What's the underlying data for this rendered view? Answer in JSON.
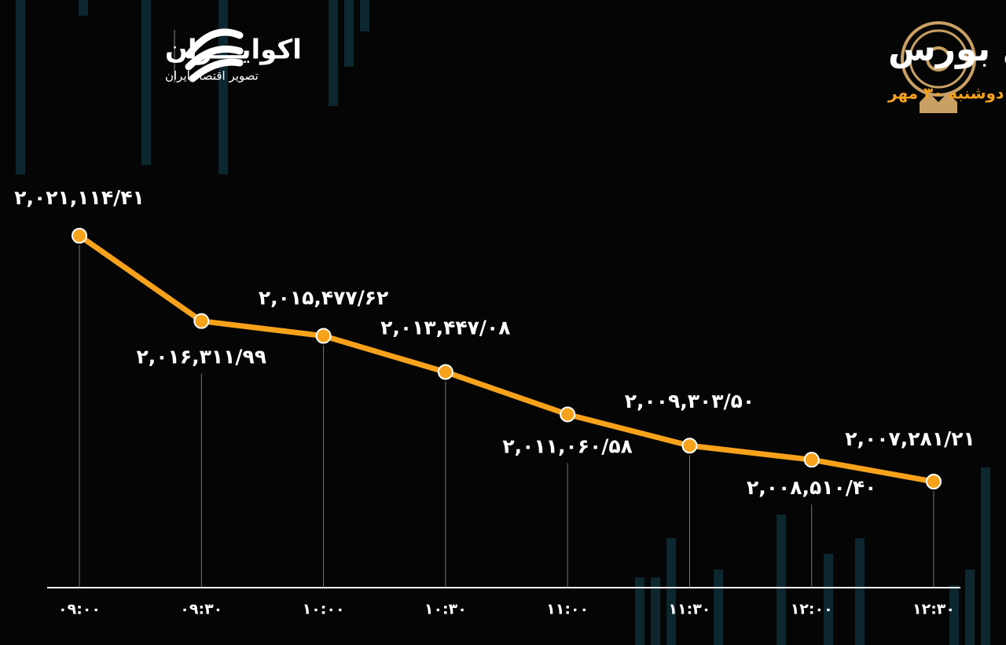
{
  "brand": {
    "name": "اکوایـــران",
    "tagline": "تصویر اقتصاد ایران"
  },
  "chart_data": {
    "type": "line",
    "title": "روند شاخص کل بورس",
    "subtitle": "دوشنبه ۳۰ مهر",
    "categories": [
      "۰۹:۰۰",
      "۰۹:۳۰",
      "۱۰:۰۰",
      "۱۰:۳۰",
      "۱۱:۰۰",
      "۱۱:۳۰",
      "۱۲:۰۰",
      "۱۲:۳۰"
    ],
    "values": [
      2021114.41,
      2016311.99,
      2015477.62,
      2013447.08,
      2011060.58,
      2009303.5,
      2008510.4,
      2007281.21
    ],
    "value_labels": [
      "۲,۰۲۱,۱۱۴/۴۱",
      "۲,۰۱۶,۳۱۱/۹۹",
      "۲,۰۱۵,۴۷۷/۶۲",
      "۲,۰۱۳,۴۴۷/۰۸",
      "۲,۰۱۱,۰۶۰/۵۸",
      "۲,۰۰۹,۳۰۳/۵۰",
      "۲,۰۰۸,۵۱۰/۴۰",
      "۲,۰۰۷,۲۸۱/۲۱"
    ],
    "color": "#f7a21b"
  }
}
